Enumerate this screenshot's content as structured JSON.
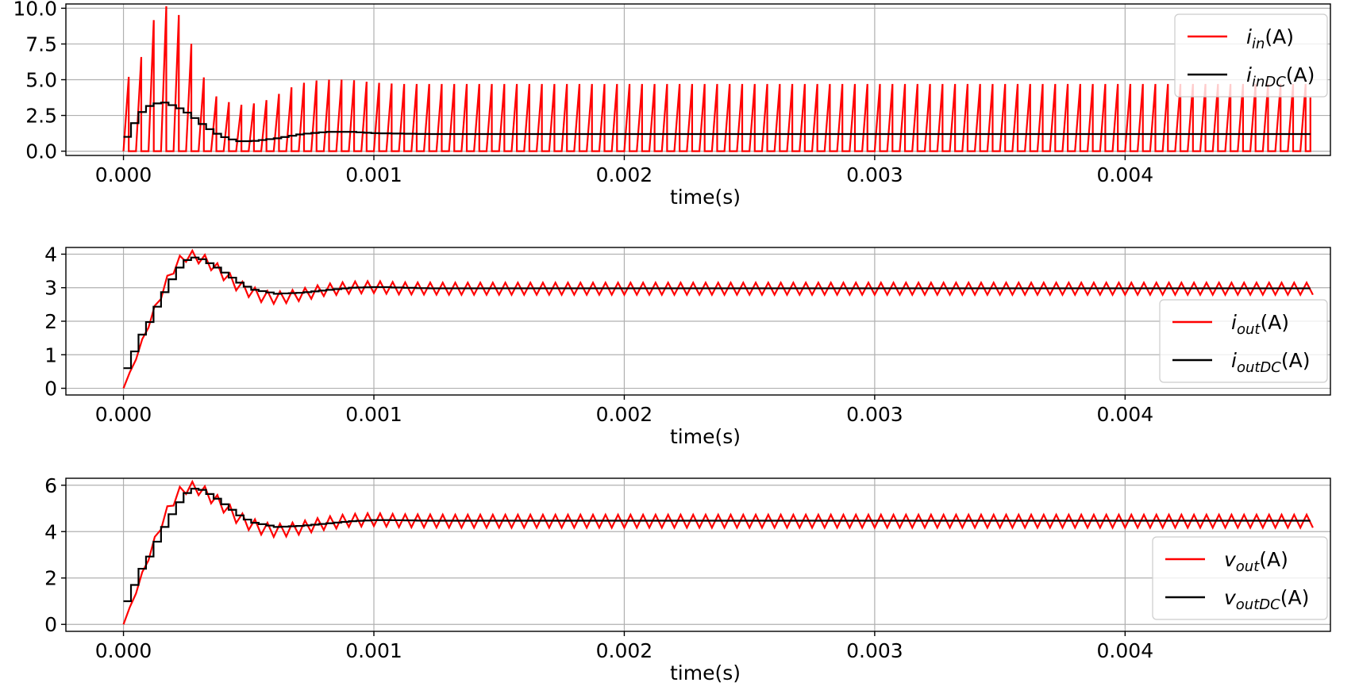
{
  "chart_data": [
    {
      "type": "line",
      "xlabel": "time(s)",
      "xlim": [
        -0.00023,
        0.00482
      ],
      "ylim": [
        -0.3,
        10.3
      ],
      "xticks": [
        "0.000",
        "0.001",
        "0.002",
        "0.003",
        "0.004"
      ],
      "xtick_values": [
        0,
        0.001,
        0.002,
        0.003,
        0.004
      ],
      "yticks": [
        "0.0",
        "2.5",
        "5.0",
        "7.5",
        "10.0"
      ],
      "ytick_values": [
        0,
        2.5,
        5.0,
        7.5,
        10.0
      ],
      "grid": true,
      "legend_position": "top-right",
      "x_end": 0.00474,
      "period": 5e-05,
      "series": [
        {
          "name": "i_in(A)",
          "legend_var": "i",
          "legend_sub": "in",
          "legend_unit": "(A)",
          "color": "#ff0000",
          "style": "pwm-sawtooth",
          "peaks": [
            [
              5e-05,
              5.2
            ],
            [
              0.0001,
              8.5
            ],
            [
              0.00015,
              10.1
            ],
            [
              0.0002,
              10.2
            ],
            [
              0.00025,
              8.6
            ],
            [
              0.0003,
              6.0
            ],
            [
              0.00035,
              4.0
            ],
            [
              0.0004,
              3.6
            ],
            [
              0.00045,
              3.2
            ],
            [
              0.0005,
              3.3
            ],
            [
              0.00055,
              3.4
            ],
            [
              0.0006,
              3.8
            ],
            [
              0.00065,
              4.3
            ],
            [
              0.0007,
              4.7
            ],
            [
              0.00075,
              4.9
            ],
            [
              0.0008,
              5.0
            ],
            [
              0.00085,
              5.0
            ],
            [
              0.0009,
              5.0
            ],
            [
              0.00095,
              4.9
            ],
            [
              0.001,
              4.8
            ],
            [
              0.0011,
              4.7
            ],
            [
              0.00474,
              4.7
            ]
          ]
        },
        {
          "name": "i_inDC(A)",
          "legend_var": "i",
          "legend_sub": "inDC",
          "legend_unit": "(A)",
          "color": "#000000",
          "style": "staircase",
          "points": [
            [
              0.0,
              1.0
            ],
            [
              5e-05,
              2.6
            ],
            [
              0.0001,
              3.3
            ],
            [
              0.00015,
              3.4
            ],
            [
              0.0002,
              3.1
            ],
            [
              0.00025,
              2.6
            ],
            [
              0.0003,
              1.9
            ],
            [
              0.00035,
              1.3
            ],
            [
              0.0004,
              0.9
            ],
            [
              0.00045,
              0.7
            ],
            [
              0.0005,
              0.7
            ],
            [
              0.00055,
              0.8
            ],
            [
              0.0006,
              0.9
            ],
            [
              0.0007,
              1.2
            ],
            [
              0.0008,
              1.35
            ],
            [
              0.0009,
              1.35
            ],
            [
              0.001,
              1.25
            ],
            [
              0.0012,
              1.2
            ],
            [
              0.00474,
              1.2
            ]
          ]
        }
      ]
    },
    {
      "type": "line",
      "xlabel": "time(s)",
      "xlim": [
        -0.00023,
        0.00482
      ],
      "ylim": [
        -0.2,
        4.2
      ],
      "xticks": [
        "0.000",
        "0.001",
        "0.002",
        "0.003",
        "0.004"
      ],
      "xtick_values": [
        0,
        0.001,
        0.002,
        0.003,
        0.004
      ],
      "yticks": [
        "0",
        "1",
        "2",
        "3",
        "4"
      ],
      "ytick_values": [
        0,
        1,
        2,
        3,
        4
      ],
      "grid": true,
      "legend_position": "center-right",
      "x_end": 0.00474,
      "period": 5e-05,
      "series": [
        {
          "name": "i_out(A)",
          "legend_var": "i",
          "legend_sub": "out",
          "legend_unit": "(A)",
          "color": "#ff0000",
          "style": "ripple",
          "ripple_amp": 0.18,
          "points": [
            [
              0.0,
              0.0
            ],
            [
              5e-05,
              0.9
            ],
            [
              0.0001,
              1.9
            ],
            [
              0.00015,
              2.8
            ],
            [
              0.0002,
              3.6
            ],
            [
              0.00025,
              3.95
            ],
            [
              0.0003,
              3.9
            ],
            [
              0.00035,
              3.7
            ],
            [
              0.0004,
              3.4
            ],
            [
              0.00045,
              3.1
            ],
            [
              0.0005,
              2.9
            ],
            [
              0.00055,
              2.75
            ],
            [
              0.0006,
              2.7
            ],
            [
              0.00065,
              2.72
            ],
            [
              0.0007,
              2.78
            ],
            [
              0.00075,
              2.85
            ],
            [
              0.0008,
              2.93
            ],
            [
              0.0009,
              3.0
            ],
            [
              0.001,
              3.02
            ],
            [
              0.0011,
              2.98
            ],
            [
              0.0013,
              2.97
            ],
            [
              0.00474,
              2.97
            ]
          ]
        },
        {
          "name": "i_outDC(A)",
          "legend_var": "i",
          "legend_sub": "outDC",
          "legend_unit": "(A)",
          "color": "#000000",
          "style": "staircase",
          "points": [
            [
              0.0,
              0.6
            ],
            [
              3e-05,
              1.1
            ],
            [
              6e-05,
              1.6
            ],
            [
              0.0001,
              2.1
            ],
            [
              0.00013,
              2.6
            ],
            [
              0.00016,
              3.0
            ],
            [
              0.0002,
              3.5
            ],
            [
              0.00023,
              3.8
            ],
            [
              0.00027,
              3.9
            ],
            [
              0.0003,
              3.85
            ],
            [
              0.00035,
              3.65
            ],
            [
              0.0004,
              3.4
            ],
            [
              0.00045,
              3.15
            ],
            [
              0.0005,
              2.95
            ],
            [
              0.0006,
              2.82
            ],
            [
              0.0007,
              2.85
            ],
            [
              0.0008,
              2.93
            ],
            [
              0.0009,
              3.0
            ],
            [
              0.001,
              3.02
            ],
            [
              0.0012,
              2.98
            ],
            [
              0.00474,
              2.98
            ]
          ]
        }
      ]
    },
    {
      "type": "line",
      "xlabel": "time(s)",
      "xlim": [
        -0.00023,
        0.00482
      ],
      "ylim": [
        -0.3,
        6.3
      ],
      "xticks": [
        "0.000",
        "0.001",
        "0.002",
        "0.003",
        "0.004"
      ],
      "xtick_values": [
        0,
        0.001,
        0.002,
        0.003,
        0.004
      ],
      "yticks": [
        "0",
        "2",
        "4",
        "6"
      ],
      "ytick_values": [
        0,
        2,
        4,
        6
      ],
      "grid": true,
      "legend_position": "bottom-right",
      "x_end": 0.00474,
      "period": 5e-05,
      "series": [
        {
          "name": "v_out(A)",
          "legend_var": "v",
          "legend_sub": "out",
          "legend_unit": "(A)",
          "color": "#ff0000",
          "style": "ripple",
          "ripple_amp": 0.28,
          "points": [
            [
              0.0,
              0.0
            ],
            [
              5e-05,
              1.4
            ],
            [
              0.0001,
              2.9
            ],
            [
              0.00015,
              4.3
            ],
            [
              0.0002,
              5.4
            ],
            [
              0.00025,
              5.9
            ],
            [
              0.0003,
              5.85
            ],
            [
              0.00035,
              5.5
            ],
            [
              0.0004,
              5.1
            ],
            [
              0.00045,
              4.65
            ],
            [
              0.0005,
              4.35
            ],
            [
              0.00055,
              4.15
            ],
            [
              0.0006,
              4.05
            ],
            [
              0.00065,
              4.07
            ],
            [
              0.0007,
              4.15
            ],
            [
              0.00075,
              4.25
            ],
            [
              0.0008,
              4.35
            ],
            [
              0.0009,
              4.48
            ],
            [
              0.001,
              4.52
            ],
            [
              0.0011,
              4.47
            ],
            [
              0.0013,
              4.45
            ],
            [
              0.00474,
              4.45
            ]
          ]
        },
        {
          "name": "v_outDC(A)",
          "legend_var": "v",
          "legend_sub": "outDC",
          "legend_unit": "(A)",
          "color": "#000000",
          "style": "staircase",
          "points": [
            [
              0.0,
              1.0
            ],
            [
              3e-05,
              1.7
            ],
            [
              6e-05,
              2.4
            ],
            [
              0.0001,
              3.1
            ],
            [
              0.00013,
              3.8
            ],
            [
              0.00016,
              4.4
            ],
            [
              0.0002,
              5.1
            ],
            [
              0.00023,
              5.6
            ],
            [
              0.00027,
              5.85
            ],
            [
              0.0003,
              5.8
            ],
            [
              0.00035,
              5.5
            ],
            [
              0.0004,
              5.1
            ],
            [
              0.00045,
              4.7
            ],
            [
              0.0005,
              4.4
            ],
            [
              0.0006,
              4.2
            ],
            [
              0.0007,
              4.25
            ],
            [
              0.0008,
              4.35
            ],
            [
              0.0009,
              4.45
            ],
            [
              0.001,
              4.5
            ],
            [
              0.0012,
              4.47
            ],
            [
              0.00474,
              4.47
            ]
          ]
        }
      ]
    }
  ]
}
